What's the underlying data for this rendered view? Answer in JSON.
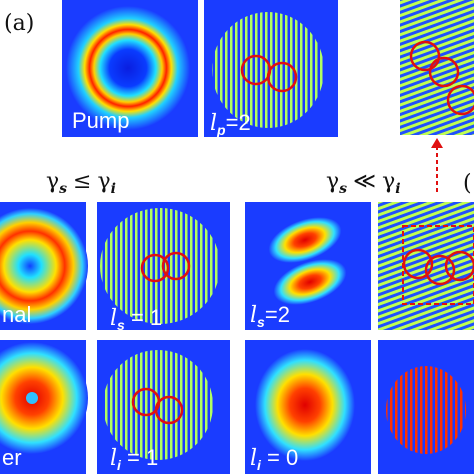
{
  "figure": {
    "panel_label": "(a)",
    "side_label": "(",
    "condition_left": {
      "base1": "γ",
      "sub1": "s",
      "relation": "≤",
      "base2": "γ",
      "sub2": "i"
    },
    "condition_right": {
      "base1": "γ",
      "sub1": "s",
      "relation": "≪",
      "base2": "γ",
      "sub2": "i"
    },
    "pump": {
      "label": "Pump"
    },
    "pump_fringe": {
      "symbol": "l",
      "subscript": "p",
      "text": "=2"
    },
    "signal": {
      "label": "nal"
    },
    "signal_fringe": {
      "symbol": "l",
      "subscript": "s",
      "text": " = 1"
    },
    "signal_right": {
      "symbol": "l",
      "subscript": "s",
      "text": "=2"
    },
    "idler": {
      "label": "er"
    },
    "idler_fringe": {
      "symbol": "l",
      "subscript": "i",
      "text": " = 1"
    },
    "idler_right": {
      "symbol": "l",
      "subscript": "i",
      "text": " = 0"
    }
  }
}
